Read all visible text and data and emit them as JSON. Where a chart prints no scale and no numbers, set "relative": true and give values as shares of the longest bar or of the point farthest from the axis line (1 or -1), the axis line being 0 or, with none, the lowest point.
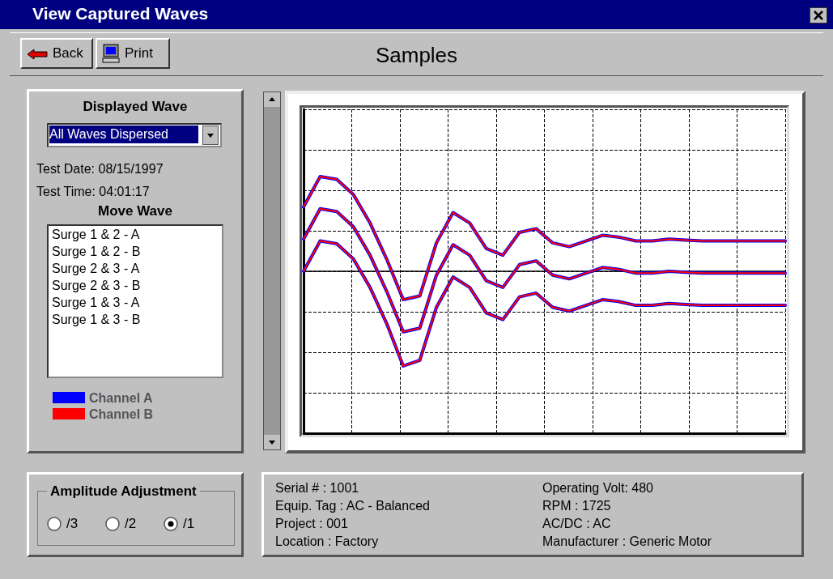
{
  "chart_data": {
    "type": "line",
    "title": "Samples",
    "subtitle": "View Captured Waves",
    "relative": true,
    "grid": true,
    "legend": "left",
    "marker": "none",
    "line_style": "solid",
    "categories": [
      null,
      null,
      null,
      null,
      null,
      null,
      null,
      null,
      null,
      null,
      null,
      null,
      null,
      null,
      null,
      null,
      null,
      null,
      null,
      null,
      null,
      null,
      null,
      null,
      null,
      null,
      null,
      null,
      null,
      null
    ],
    "series": [
      {
        "name": "Channel A",
        "color": "#0000ff",
        "values": [
          0.68,
          1.0,
          0.97,
          0.81,
          0.51,
          0.13,
          -0.3,
          -0.26,
          0.3,
          0.62,
          0.51,
          0.24,
          0.17,
          0.41,
          0.45,
          0.3,
          0.26,
          0.32,
          0.38,
          0.36,
          0.32,
          0.32,
          0.34,
          0.33,
          0.32,
          0.32,
          0.32,
          0.32,
          0.32,
          0.32
        ]
      },
      {
        "color": "#0000ff",
        "values": [
          0.34,
          0.66,
          0.63,
          0.47,
          0.17,
          -0.21,
          -0.64,
          -0.6,
          -0.04,
          0.28,
          0.17,
          -0.1,
          -0.17,
          0.07,
          0.11,
          -0.04,
          -0.08,
          -0.02,
          0.04,
          0.02,
          -0.02,
          -0.02,
          0.0,
          -0.01,
          -0.02,
          -0.02,
          -0.02,
          -0.02,
          -0.02,
          -0.02
        ]
      },
      {
        "color": "#0000ff",
        "values": [
          0.0,
          0.32,
          0.29,
          0.13,
          -0.17,
          -0.55,
          -1.0,
          -0.94,
          -0.38,
          -0.06,
          -0.17,
          -0.44,
          -0.51,
          -0.27,
          -0.23,
          -0.38,
          -0.42,
          -0.36,
          -0.3,
          -0.32,
          -0.36,
          -0.36,
          -0.34,
          -0.35,
          -0.36,
          -0.36,
          -0.36,
          -0.36,
          -0.36,
          -0.36
        ]
      },
      {
        "name": "Channel B",
        "color": "#ff0000",
        "values": [
          0.68,
          1.0,
          0.97,
          0.81,
          0.51,
          0.13,
          -0.3,
          -0.26,
          0.3,
          0.62,
          0.51,
          0.24,
          0.17,
          0.41,
          0.45,
          0.3,
          0.26,
          0.32,
          0.38,
          0.36,
          0.32,
          0.32,
          0.34,
          0.33,
          0.32,
          0.32,
          0.32,
          0.32,
          0.32,
          0.32
        ]
      },
      {
        "color": "#ff0000",
        "values": [
          0.34,
          0.66,
          0.63,
          0.47,
          0.17,
          -0.21,
          -0.64,
          -0.6,
          -0.04,
          0.28,
          0.17,
          -0.1,
          -0.17,
          0.07,
          0.11,
          -0.04,
          -0.08,
          -0.02,
          0.04,
          0.02,
          -0.02,
          -0.02,
          0.0,
          -0.01,
          -0.02,
          -0.02,
          -0.02,
          -0.02,
          -0.02,
          -0.02
        ]
      },
      {
        "color": "#ff0000",
        "values": [
          0.0,
          0.32,
          0.29,
          0.13,
          -0.17,
          -0.55,
          -1.0,
          -0.94,
          -0.38,
          -0.06,
          -0.17,
          -0.44,
          -0.51,
          -0.27,
          -0.23,
          -0.38,
          -0.42,
          -0.36,
          -0.3,
          -0.32,
          -0.36,
          -0.36,
          -0.34,
          -0.35,
          -0.36,
          -0.36,
          -0.36,
          -0.36,
          -0.36,
          -0.36
        ]
      }
    ],
    "annotations": [
      "Back",
      "Print",
      "Displayed Wave",
      "All Waves Dispersed",
      "Test Date:  08/15/1997",
      "Test Time:  04:01:17",
      "Move Wave",
      "Surge 1 & 2 - A",
      "Surge 1 & 2 - B",
      "Surge 2 & 3 - A",
      "Surge 2 & 3 - B",
      "Surge 1 & 3 - A",
      "Surge 1 & 3 - B",
      "Amplitude Adjustment",
      "/3",
      "/2",
      "/1",
      "Serial # : 1001",
      "Equip. Tag : AC - Balanced",
      "Project : 001",
      "Location : Factory",
      "Operating Volt: 480",
      "RPM : 1725",
      "AC/DC : AC",
      "Manufacturer : Generic Motor"
    ]
  }
}
